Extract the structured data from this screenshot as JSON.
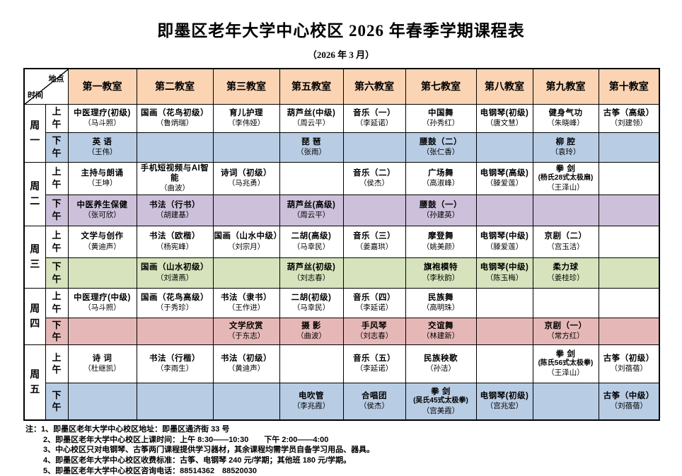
{
  "title": "即墨区老年大学中心校区 2026 年春季学期课程表",
  "subtitle": "（2026 年 3 月）",
  "colors": {
    "header_bg": "#FBD4B4",
    "monday_pm": "#B8CCE4",
    "tuesday_pm": "#CCC0DA",
    "wednesday_pm": "#D6E3BC",
    "thursday_pm": "#E5B8B7",
    "friday_pm": "#B8CCE4",
    "border": "#000000"
  },
  "table": {
    "corner_top": "地点",
    "corner_bottom": "时间",
    "columns": [
      "第一教室",
      "第二教室",
      "第三教室",
      "第五教室",
      "第六教室",
      "第七教室",
      "第八教室",
      "第九教室",
      "第十教室"
    ],
    "rows": [
      {
        "day": "周一",
        "session": "上午",
        "color": "#FFFFFF",
        "cells": [
          {
            "course": "中医理疗(初级)",
            "teacher": "（马斗照）"
          },
          {
            "course": "国画（花鸟初级）",
            "teacher": "（鲁炳瑞）"
          },
          {
            "course": "育儿护理",
            "teacher": "（李伟娅）"
          },
          {
            "course": "葫芦丝(中级)",
            "teacher": "（周云平）"
          },
          {
            "course": "音乐（一）",
            "teacher": "（李延诺）"
          },
          {
            "course": "中国舞",
            "teacher": "（孙秀红）"
          },
          {
            "course": "电钢琴(初级)",
            "teacher": "（唐文慧）"
          },
          {
            "course": "健身气功",
            "teacher": "（朱晓峰）"
          },
          {
            "course": "古筝（高级）",
            "teacher": "（刘建领）"
          }
        ]
      },
      {
        "session": "下午",
        "color": "#B8CCE4",
        "cells": [
          {
            "course": "英  语",
            "teacher": "（王伟）"
          },
          null,
          null,
          {
            "course": "琵  琶",
            "teacher": "（张雨）"
          },
          null,
          {
            "course": "腰鼓（二）",
            "teacher": "（张仁香）"
          },
          null,
          {
            "course": "柳  腔",
            "teacher": "（袁玲）"
          },
          null
        ]
      },
      {
        "day": "周二",
        "session": "上午",
        "color": "#FFFFFF",
        "cells": [
          {
            "course": "主持与朗诵",
            "teacher": "（王坤）"
          },
          {
            "course": "手机短视频与AI智能",
            "teacher": "（曲波）"
          },
          {
            "course": "诗词（初级）",
            "teacher": "（马兆勇）"
          },
          null,
          {
            "course": "音乐（二）",
            "teacher": "（侯杰）"
          },
          {
            "course": "广场舞",
            "teacher": "（高淑峰）"
          },
          {
            "course": "电钢琴(高级)",
            "teacher": "（滕爱莲）"
          },
          {
            "course": "拳  剑",
            "sub": "(杨氏28式太极扇)",
            "teacher": "（王泽山）"
          },
          null
        ]
      },
      {
        "session": "下午",
        "color": "#CCC0DA",
        "cells": [
          {
            "course": "中医养生保健",
            "teacher": "（张可欣）"
          },
          {
            "course": "书法（行书）",
            "teacher": "（胡建基）"
          },
          null,
          {
            "course": "葫芦丝(高级)",
            "teacher": "（周云平）"
          },
          null,
          {
            "course": "腰鼓（一）",
            "teacher": "（孙建英）"
          },
          null,
          null,
          null
        ]
      },
      {
        "day": "周三",
        "session": "上午",
        "color": "#FFFFFF",
        "cells": [
          {
            "course": "文学与创作",
            "teacher": "（黄迪声）"
          },
          {
            "course": "书法（欧楷）",
            "teacher": "（杨宪峰）"
          },
          {
            "course": "国画（山水中级）",
            "teacher": "（刘宗月）"
          },
          {
            "course": "二胡(高级)",
            "teacher": "（马幸民）"
          },
          {
            "course": "音乐（三）",
            "teacher": "（姜嘉珙）"
          },
          {
            "course": "摩登舞",
            "teacher": "（姚美颜）"
          },
          {
            "course": "电钢琴(中级)",
            "teacher": "（滕爱莲）"
          },
          {
            "course": "京剧（二）",
            "teacher": "（宫玉洁）"
          },
          null
        ]
      },
      {
        "session": "下午",
        "color": "#D6E3BC",
        "cells": [
          null,
          {
            "course": "国画（山水初级）",
            "teacher": "（刘潇燕）"
          },
          null,
          {
            "course": "葫芦丝(初级)",
            "teacher": "（刘志春）"
          },
          null,
          {
            "course": "旗袍模特",
            "teacher": "（李秋韵）"
          },
          {
            "course": "电钢琴(中级)",
            "teacher": "（陈玉梅）"
          },
          {
            "course": "柔力球",
            "teacher": "（姜桂珍）"
          },
          null
        ]
      },
      {
        "day": "周四",
        "session": "上午",
        "color": "#FFFFFF",
        "cells": [
          {
            "course": "中医理疗(中级)",
            "teacher": "（马斗照）"
          },
          {
            "course": "国画（花鸟高级）",
            "teacher": "（于秀珍）"
          },
          {
            "course": "书法（隶书）",
            "teacher": "（王作进）"
          },
          {
            "course": "二胡(初级)",
            "teacher": "（马幸民）"
          },
          {
            "course": "音乐（四）",
            "teacher": "（李延诺）"
          },
          {
            "course": "民族舞",
            "teacher": "（高明珠）"
          },
          null,
          null,
          null
        ]
      },
      {
        "session": "下午",
        "color": "#E5B8B7",
        "cells": [
          null,
          null,
          {
            "course": "文学欣赏",
            "teacher": "（于东志）"
          },
          {
            "course": "摄  影",
            "teacher": "（曲波）"
          },
          {
            "course": "手风琴",
            "teacher": "（刘志春）"
          },
          {
            "course": "交谊舞",
            "teacher": "（林建新）"
          },
          null,
          {
            "course": "京剧（一）",
            "teacher": "（常方红）"
          },
          null
        ]
      },
      {
        "day": "周五",
        "session": "上午",
        "color": "#FFFFFF",
        "cells": [
          {
            "course": "诗  词",
            "teacher": "（杜继凯）"
          },
          {
            "course": "书法（行楷）",
            "teacher": "（李雨生）"
          },
          {
            "course": "书法（初级）",
            "teacher": "（黄迪声）"
          },
          null,
          {
            "course": "音乐（五）",
            "teacher": "（李延诺）"
          },
          {
            "course": "民族秧歌",
            "teacher": "（孙洁）"
          },
          null,
          {
            "course": "拳  剑",
            "sub": "(陈氏56式太极拳)",
            "teacher": "（王泽山）"
          },
          {
            "course": "古筝（初级）",
            "teacher": "（刘蓓蓓）"
          }
        ]
      },
      {
        "session": "下午",
        "color": "#B8CCE4",
        "cells": [
          null,
          null,
          null,
          {
            "course": "电吹管",
            "teacher": "（李兆霞）"
          },
          {
            "course": "合唱团",
            "teacher": "（侯杰）"
          },
          {
            "course": "拳  剑",
            "sub": "(吴氏45式太极拳)",
            "teacher": "（宫美霞）"
          },
          {
            "course": "电钢琴(初级)",
            "teacher": "（宫兆宏）"
          },
          null,
          {
            "course": "古筝（中级）",
            "teacher": "（刘蓓蓓）"
          }
        ]
      }
    ]
  },
  "notes": [
    "注：1、即墨区老年大学中心校区地址：即墨区通济街 33 号",
    "2、即墨区老年大学中心校区上课时间：上午 8:30——10:30　　下午 2:00——4:00",
    "3、中心校区只对电钢琴、古筝两门课程提供学习器材，其余课程均需学员自备学习用品、器具。",
    "4、即墨区老年大学中心校区收费标准：古筝、电钢琴 240 元/学期；其他班 180 元/学期。",
    "5、即墨区老年大学中心校区咨询电话：88514362　88520030"
  ]
}
